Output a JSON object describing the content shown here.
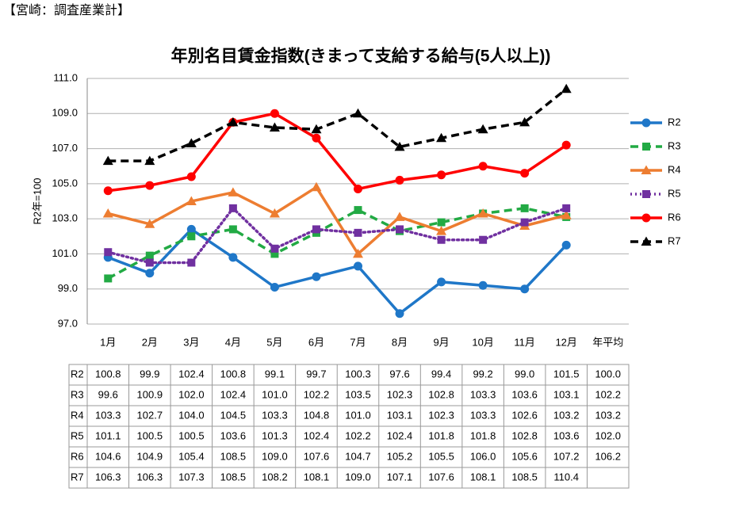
{
  "chart_data": {
    "type": "line",
    "header": "【宮崎：調査産業計】",
    "title": "年別名目賃金指数(きまって支給する給与(5人以上))",
    "y_label": "R2年=100",
    "categories": [
      "1月",
      "2月",
      "3月",
      "4月",
      "5月",
      "6月",
      "7月",
      "8月",
      "9月",
      "10月",
      "11月",
      "12月"
    ],
    "average_category": "年平均",
    "ylim": [
      97,
      111
    ],
    "yticks": [
      {
        "value": 97,
        "label": "97.0"
      },
      {
        "value": 99,
        "label": "99.0"
      },
      {
        "value": 101,
        "label": "101.0"
      },
      {
        "value": 103,
        "label": "103.0"
      },
      {
        "value": 105,
        "label": "105.0"
      },
      {
        "value": 107,
        "label": "107.0"
      },
      {
        "value": 109,
        "label": "109.0"
      },
      {
        "value": 111,
        "label": "111.0"
      }
    ],
    "grid": true,
    "legend": "right",
    "series": [
      {
        "name": "R2",
        "color": "#1f77c8",
        "marker": "circle",
        "dash": "solid",
        "values": [
          100.8,
          99.9,
          102.4,
          100.8,
          99.1,
          99.7,
          100.3,
          97.6,
          99.4,
          99.2,
          99.0,
          101.5
        ],
        "value_labels": [
          "100.8",
          "99.9",
          "102.4",
          "100.8",
          "99.1",
          "99.7",
          "100.3",
          "97.6",
          "99.4",
          "99.2",
          "99.0",
          "101.5"
        ],
        "average": 100,
        "average_label": "100.0"
      },
      {
        "name": "R3",
        "color": "#22aa44",
        "marker": "square",
        "dash": "dashed",
        "values": [
          99.6,
          100.9,
          102.0,
          102.4,
          101.0,
          102.2,
          103.5,
          102.3,
          102.8,
          103.3,
          103.6,
          103.1
        ],
        "value_labels": [
          "99.6",
          "100.9",
          "102.0",
          "102.4",
          "101.0",
          "102.2",
          "103.5",
          "102.3",
          "102.8",
          "103.3",
          "103.6",
          "103.1"
        ],
        "average": 102.2,
        "average_label": "102.2"
      },
      {
        "name": "R4",
        "color": "#ed7d31",
        "marker": "triangle",
        "dash": "solid",
        "values": [
          103.3,
          102.7,
          104.0,
          104.5,
          103.3,
          104.8,
          101.0,
          103.1,
          102.3,
          103.3,
          102.6,
          103.2
        ],
        "value_labels": [
          "103.3",
          "102.7",
          "104.0",
          "104.5",
          "103.3",
          "104.8",
          "101.0",
          "103.1",
          "102.3",
          "103.3",
          "102.6",
          "103.2"
        ],
        "average": 103.2,
        "average_label": "103.2"
      },
      {
        "name": "R5",
        "color": "#7030a0",
        "marker": "square",
        "dash": "dotted",
        "values": [
          101.1,
          100.5,
          100.5,
          103.6,
          101.3,
          102.4,
          102.2,
          102.4,
          101.8,
          101.8,
          102.8,
          103.6
        ],
        "value_labels": [
          "101.1",
          "100.5",
          "100.5",
          "103.6",
          "101.3",
          "102.4",
          "102.2",
          "102.4",
          "101.8",
          "101.8",
          "102.8",
          "103.6"
        ],
        "average": 102,
        "average_label": "102.0"
      },
      {
        "name": "R6",
        "color": "#ff0000",
        "marker": "circle",
        "dash": "solid",
        "values": [
          104.6,
          104.9,
          105.4,
          108.5,
          109.0,
          107.6,
          104.7,
          105.2,
          105.5,
          106.0,
          105.6,
          107.2
        ],
        "value_labels": [
          "104.6",
          "104.9",
          "105.4",
          "108.5",
          "109.0",
          "107.6",
          "104.7",
          "105.2",
          "105.5",
          "106.0",
          "105.6",
          "107.2"
        ],
        "average": 106.2,
        "average_label": "106.2"
      },
      {
        "name": "R7",
        "color": "#000000",
        "marker": "triangle",
        "dash": "dashed",
        "values": [
          106.3,
          106.3,
          107.3,
          108.5,
          108.2,
          108.1,
          109.0,
          107.1,
          107.6,
          108.1,
          108.5,
          110.4
        ],
        "value_labels": [
          "106.3",
          "106.3",
          "107.3",
          "108.5",
          "108.2",
          "108.1",
          "109.0",
          "107.1",
          "107.6",
          "108.1",
          "108.5",
          "110.4"
        ]
      }
    ]
  }
}
